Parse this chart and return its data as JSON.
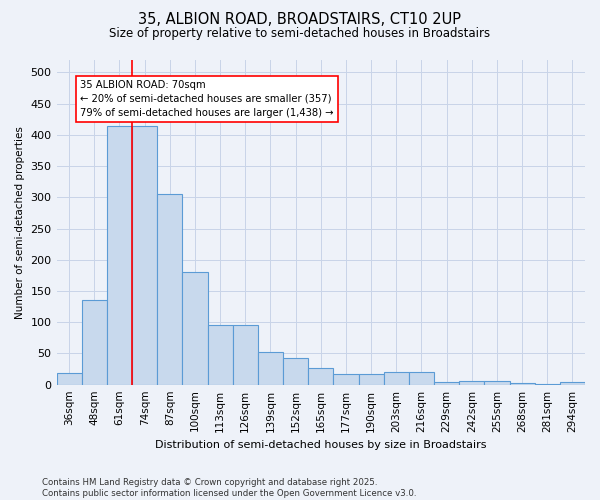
{
  "title1": "35, ALBION ROAD, BROADSTAIRS, CT10 2UP",
  "title2": "Size of property relative to semi-detached houses in Broadstairs",
  "xlabel": "Distribution of semi-detached houses by size in Broadstairs",
  "ylabel": "Number of semi-detached properties",
  "footer": "Contains HM Land Registry data © Crown copyright and database right 2025.\nContains public sector information licensed under the Open Government Licence v3.0.",
  "bar_labels": [
    "36sqm",
    "48sqm",
    "61sqm",
    "74sqm",
    "87sqm",
    "100sqm",
    "113sqm",
    "126sqm",
    "139sqm",
    "152sqm",
    "165sqm",
    "177sqm",
    "190sqm",
    "203sqm",
    "216sqm",
    "229sqm",
    "242sqm",
    "255sqm",
    "268sqm",
    "281sqm",
    "294sqm"
  ],
  "bar_values": [
    18,
    135,
    415,
    415,
    305,
    180,
    96,
    96,
    52,
    42,
    26,
    17,
    17,
    20,
    20,
    4,
    6,
    6,
    2,
    1,
    4
  ],
  "bar_color": "#c8d9ed",
  "bar_edge_color": "#5b9bd5",
  "annotation_text": "35 ALBION ROAD: 70sqm\n← 20% of semi-detached houses are smaller (357)\n79% of semi-detached houses are larger (1,438) →",
  "redline_x": 2.5,
  "ylim": [
    0,
    520
  ],
  "yticks": [
    0,
    50,
    100,
    150,
    200,
    250,
    300,
    350,
    400,
    450,
    500
  ],
  "grid_color": "#c8d4e8",
  "bg_color": "#eef2f9"
}
